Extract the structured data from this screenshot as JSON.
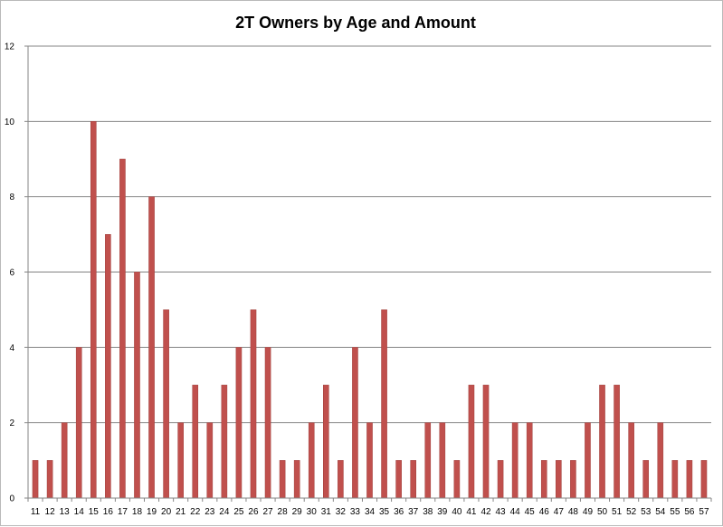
{
  "chart_data": {
    "type": "bar",
    "title": "2T Owners by Age and Amount",
    "xlabel": "",
    "ylabel": "",
    "categories": [
      "11",
      "12",
      "13",
      "14",
      "15",
      "16",
      "17",
      "18",
      "19",
      "20",
      "21",
      "22",
      "23",
      "24",
      "25",
      "26",
      "27",
      "28",
      "29",
      "30",
      "31",
      "32",
      "33",
      "34",
      "35",
      "36",
      "37",
      "38",
      "39",
      "40",
      "41",
      "42",
      "43",
      "44",
      "45",
      "46",
      "47",
      "48",
      "49",
      "50",
      "51",
      "52",
      "53",
      "54",
      "55",
      "56",
      "57"
    ],
    "values": [
      1,
      1,
      2,
      4,
      10,
      7,
      9,
      6,
      8,
      5,
      2,
      3,
      2,
      3,
      4,
      5,
      4,
      1,
      1,
      2,
      3,
      1,
      4,
      2,
      5,
      1,
      1,
      2,
      2,
      1,
      3,
      3,
      1,
      2,
      2,
      1,
      1,
      1,
      2,
      3,
      3,
      2,
      1,
      2,
      1,
      1,
      1
    ],
    "ylim": [
      0,
      12
    ],
    "yticks": [
      "0",
      "2",
      "4",
      "6",
      "8",
      "10",
      "12"
    ],
    "grid": true,
    "legend": "none",
    "colors": {
      "bar": "#c0504d",
      "bar_edge": "#a0403d",
      "grid": "#868686",
      "axis": "#868686"
    }
  }
}
